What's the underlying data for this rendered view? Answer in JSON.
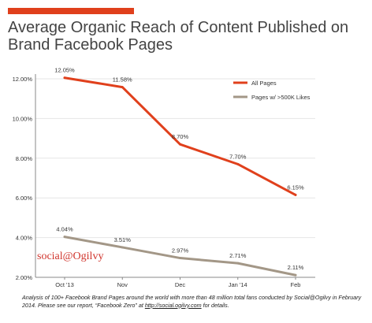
{
  "title": "Average Organic Reach of Content Published on Brand Facebook Pages",
  "brand_mark": "social@Ogilvy",
  "footnote": {
    "text_before": "Analysis of 100+ Facebook Brand Pages around the world with more than 48 million total fans conducted by Social@Ogilvy in February 2014. Please see our report, “Facebook Zero” at ",
    "link": "http://social.ogilvy.com",
    "text_after": " for details."
  },
  "colors": {
    "accent": "#e0401c",
    "all_pages": "#e0401c",
    "large_pages": "#a39787",
    "axis": "#888888",
    "grid": "#e6e6e6",
    "brand": "#d0342c"
  },
  "chart_data": {
    "type": "line",
    "categories": [
      "Oct '13",
      "Nov",
      "Dec",
      "Jan '14",
      "Feb"
    ],
    "ylim": [
      2.0,
      12.0
    ],
    "yticks": [
      "2.00%",
      "4.00%",
      "6.00%",
      "8.00%",
      "10.00%",
      "12.00%"
    ],
    "grid": true,
    "legend_position": "top-right",
    "series": [
      {
        "name": "All Pages",
        "values": [
          12.05,
          11.58,
          8.7,
          7.7,
          6.15
        ],
        "labels": [
          "12.05%",
          "11.58%",
          "8.70%",
          "7.70%",
          "6.15%"
        ]
      },
      {
        "name": "Pages w/ >500K Likes",
        "values": [
          4.04,
          3.51,
          2.97,
          2.71,
          2.11
        ],
        "labels": [
          "4.04%",
          "3.51%",
          "2.97%",
          "2.71%",
          "2.11%"
        ]
      }
    ]
  }
}
